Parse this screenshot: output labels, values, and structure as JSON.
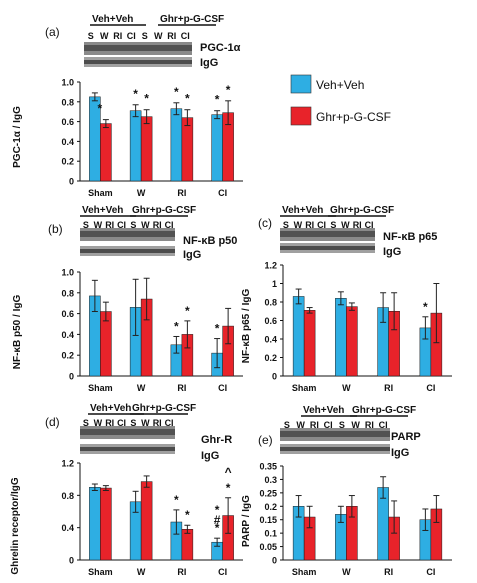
{
  "colors": {
    "veh": "#2eaee3",
    "ghr": "#e8232a",
    "axis": "#111111",
    "err": "#222222"
  },
  "legend": {
    "veh": "Veh+Veh",
    "ghr": "Ghr+p-G-CSF"
  },
  "chart_data": [
    {
      "id": "a",
      "panel": "(a)",
      "type": "bar",
      "ylabel": "PGC-1α / IgG",
      "ylim": [
        0,
        1.0
      ],
      "ticks": [
        "0",
        "0.2",
        "0.4",
        "0.6",
        "0.8",
        "1.0"
      ],
      "categories": [
        "Sham",
        "W",
        "RI",
        "CI"
      ],
      "series": [
        {
          "name": "Veh+Veh",
          "values": [
            0.85,
            0.71,
            0.73,
            0.67
          ],
          "err": [
            0.04,
            0.06,
            0.06,
            0.04
          ]
        },
        {
          "name": "Ghr+p-G-CSF",
          "values": [
            0.58,
            0.65,
            0.64,
            0.69
          ],
          "err": [
            0.04,
            0.07,
            0.08,
            0.12
          ]
        }
      ],
      "annotations": [
        "*",
        "*",
        "*",
        "*",
        "*",
        "*",
        "*"
      ],
      "blot": {
        "group1": "Veh+Veh",
        "group2": "Ghr+p-G-CSF",
        "lanes": [
          "S",
          "W",
          "RI",
          "CI",
          "S",
          "W",
          "RI",
          "CI"
        ],
        "protein": "PGC-1α",
        "control": "IgG"
      }
    },
    {
      "id": "b",
      "panel": "(b)",
      "type": "bar",
      "ylabel": "NF-κB p50 / IgG",
      "ylim": [
        0,
        1.0
      ],
      "ticks": [
        "0",
        "0.2",
        "0.4",
        "0.6",
        "0.8",
        "1.0"
      ],
      "categories": [
        "Sham",
        "W",
        "RI",
        "CI"
      ],
      "series": [
        {
          "name": "Veh+Veh",
          "values": [
            0.77,
            0.66,
            0.3,
            0.22
          ],
          "err": [
            0.15,
            0.27,
            0.08,
            0.14
          ]
        },
        {
          "name": "Ghr+p-G-CSF",
          "values": [
            0.62,
            0.74,
            0.4,
            0.48
          ],
          "err": [
            0.09,
            0.2,
            0.13,
            0.17
          ]
        }
      ],
      "annotations": [
        "*",
        "*",
        "*",
        "*"
      ],
      "blot": {
        "group1": "Veh+Veh",
        "group2": "Ghr+p-G-CSF",
        "lanes": [
          "S",
          "W",
          "RI",
          "CI",
          "S",
          "W",
          "RI",
          "CI"
        ],
        "protein": "NF-κB p50",
        "control": "IgG"
      }
    },
    {
      "id": "c",
      "panel": "(c)",
      "type": "bar",
      "ylabel": "NF-κB p65 / IgG",
      "ylim": [
        0,
        1.2
      ],
      "ticks": [
        "0",
        "0.2",
        "0.4",
        "0.6",
        "0.8",
        "1",
        "1.2"
      ],
      "categories": [
        "Sham",
        "W",
        "RI",
        "CI"
      ],
      "series": [
        {
          "name": "Veh+Veh",
          "values": [
            0.86,
            0.84,
            0.74,
            0.52
          ],
          "err": [
            0.08,
            0.07,
            0.16,
            0.12
          ]
        },
        {
          "name": "Ghr+p-G-CSF",
          "values": [
            0.71,
            0.75,
            0.7,
            0.68
          ],
          "err": [
            0.03,
            0.04,
            0.2,
            0.32
          ]
        }
      ],
      "annotations": [
        "*"
      ],
      "blot": {
        "group1": "Veh+Veh",
        "group2": "Ghr+p-G-CSF",
        "lanes": [
          "S",
          "W",
          "RI",
          "CI",
          "S",
          "W",
          "RI",
          "CI"
        ],
        "protein": "NF-κB p65",
        "control": "IgG"
      }
    },
    {
      "id": "d",
      "panel": "(d)",
      "type": "bar",
      "ylabel": "Ghrelin receptor/IgG",
      "ylim": [
        0,
        1.2
      ],
      "ticks": [
        "0",
        "0.4",
        "0.8",
        "1.2"
      ],
      "categories": [
        "Sham",
        "W",
        "RI",
        "CI"
      ],
      "series": [
        {
          "name": "Veh+Veh",
          "values": [
            0.9,
            0.72,
            0.47,
            0.22
          ],
          "err": [
            0.04,
            0.13,
            0.15,
            0.05
          ]
        },
        {
          "name": "Ghr+p-G-CSF",
          "values": [
            0.89,
            0.97,
            0.38,
            0.55
          ],
          "err": [
            0.03,
            0.07,
            0.05,
            0.22
          ]
        }
      ],
      "annotations": [
        "*",
        "*",
        "*",
        "#",
        "*",
        "*",
        "^"
      ],
      "blot": {
        "group1": "Veh+Veh",
        "group2": "Ghr+p-G-CSF",
        "lanes": [
          "S",
          "W",
          "RI",
          "CI",
          "S",
          "W",
          "RI",
          "CI"
        ],
        "protein": "Ghr-R",
        "control": "IgG"
      }
    },
    {
      "id": "e",
      "panel": "(e)",
      "type": "bar",
      "ylabel": "PARP / IgG",
      "ylim": [
        0,
        0.35
      ],
      "ticks": [
        "0",
        "0.05",
        "0.1",
        "0.15",
        "0.2",
        "0.25",
        "0.3",
        "0.35"
      ],
      "categories": [
        "Sham",
        "W",
        "RI",
        "CI"
      ],
      "series": [
        {
          "name": "Veh+Veh",
          "values": [
            0.2,
            0.17,
            0.27,
            0.15
          ],
          "err": [
            0.04,
            0.03,
            0.04,
            0.04
          ]
        },
        {
          "name": "Ghr+p-G-CSF",
          "values": [
            0.16,
            0.2,
            0.16,
            0.19
          ],
          "err": [
            0.04,
            0.04,
            0.06,
            0.05
          ]
        }
      ],
      "annotations": [],
      "blot": {
        "group1": "Veh+Veh",
        "group2": "Ghr+p-G-CSF",
        "lanes": [
          "S",
          "W",
          "RI",
          "CI",
          "S",
          "W",
          "RI",
          "CI"
        ],
        "protein": "PARP",
        "control": "IgG"
      }
    }
  ]
}
